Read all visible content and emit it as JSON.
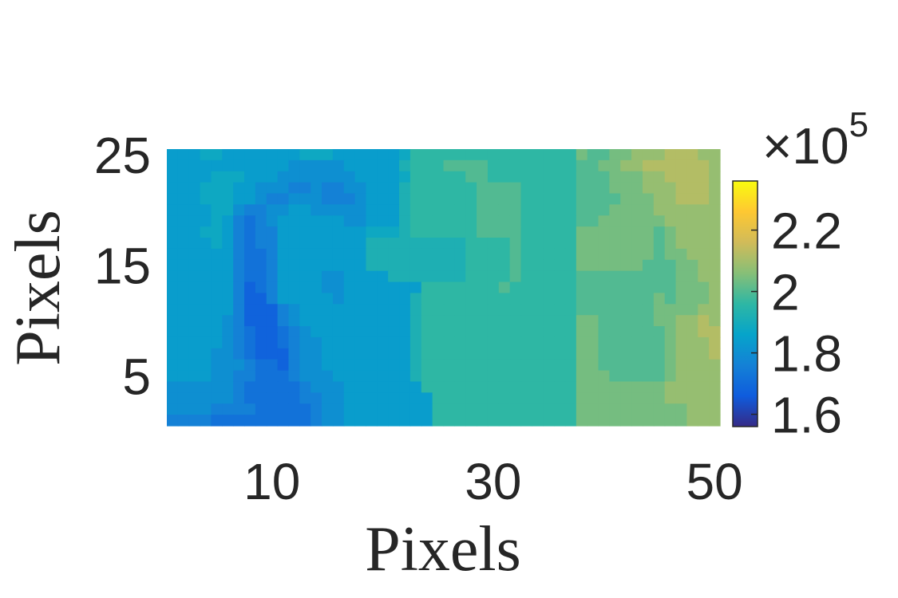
{
  "chart_data": {
    "type": "heatmap",
    "title": "",
    "xlabel": "Pixels",
    "ylabel": "Pixels",
    "xlim": [
      1,
      50
    ],
    "ylim": [
      1,
      25
    ],
    "x_ticks": [
      {
        "value": 10,
        "label": "10"
      },
      {
        "value": 30,
        "label": "30"
      },
      {
        "value": 50,
        "label": "50"
      }
    ],
    "y_ticks": [
      {
        "value": 5,
        "label": "5"
      },
      {
        "value": 15,
        "label": "15"
      },
      {
        "value": 25,
        "label": "25"
      }
    ],
    "colorbar": {
      "range": [
        1.56,
        2.36
      ],
      "ticks": [
        {
          "value": 1.6,
          "label": "1.6"
        },
        {
          "value": 1.8,
          "label": "1.8"
        },
        {
          "value": 2.0,
          "label": "2"
        },
        {
          "value": 2.2,
          "label": "2.2"
        }
      ],
      "exponent_base": "×10",
      "exponent_power": "5",
      "colormap": "parula",
      "colormap_stops": [
        "#352a87",
        "#0f5cdd",
        "#1481d6",
        "#06a4ca",
        "#2eb7a4",
        "#87bf77",
        "#d1bb59",
        "#fec832",
        "#f9fb0e"
      ]
    },
    "z_rows_top_to_bottom": [
      "HHHIIHHHHHHHIIIHHHHHHIKKKKKKKKKKKKKKKMLLMMNNNOOONN",
      "HHHHHHHHHHHGGGGGHHHHHJKKKLLLLKKKKKKKKLLMMNNOOOOOON",
      "HHHHIIIHHHGGGGGGGHHHHIKKKKKLLKKKKKKKKLLLMMMNNOOOON",
      "HHHIIIHHGGGFFGFFGGHHHJKKKKKKLLLLKKKKKLLLMMMNNNOOON",
      "HHHIIIHHGFFGGGFFFGHHHJKKKKKKLLLLKKKKKLLLLMMMNNOOON",
      "HHHHIIGFFGGHHGGGGGHHHJKKKKKKLLLLKKKKKLLLMMMMNNNNNN",
      "HHHHIHFEFGHHHHHHGGHHHJKKKKKKLLLLKKKKKLLMMMMMMNNNNN",
      "HHHIIHFEFFHHHHHHHHIIIJKKKKKKLLLLKKKKKMMMMMMMLMNNNN",
      "HHHHIHFEFFHHHHHHHHJJJJJJJJJKKKKLKKKKKMMMMMMMLMNNNN",
      "HHHHHHFEEFHHHHHHHHJJJJJJJJJKKKKLKKKKKMMMMMMMLMMNNN",
      "HHHHHHFEEFHHHHHHHHJJJJJJJJJKKKKLKKKKKMMMMMMLLLMMNN",
      "HHHHHHFEEFHHHHGGHHHHJJJJJJJKKKKLKKKKKLLLLLLLLLMMNN",
      "HHHHHHFDEFHHHHGGHHHHHHHKKKKKKKLKKKKKKLLLLLLLLLMMMN",
      "HHHHHHFDDFHHHHHGHHHHHHJKKKKKKKKKKKKKKLLLLLLLMLMMMN",
      "HHHHHHFDDDFGHHHHHHHHHHJKKKKKKKKKKKKKKLLLLLLLMMMMNN",
      "HHHHHGFDDDFGHHHHHHHHHHJKKKKKKKKKKKKKKMMLLLLLMMNNON",
      "HHHHHGFEDDEFGHHHHHHHHHJKKKKKKKKKKKKKKMMLLLLLLMNNOO",
      "HHHHHGFEDDEFGGHHHHHHHHJKKKKKKKKKKKKKKMMLLLLLLMNNNO",
      "HHHHGGFEDDDFGGHHHHHHHHJKKKKKKKKKKKKKKMMLLLLLLMNNNO",
      "HHHHGGGFEEDFGGHHHHHHHHJKKKKKKKKKKKKKKMMLLLLLLMNNNN",
      "HHHHGGFFEEEFGGGHHHHHHHJKKKKKKKKKKKKKKMMMLLLLLMNNNN",
      "GGGGGGFEEEEEFGGGHHHHHHHKKKKKKKKKKKKKKMMMMMMMMNNNNN",
      "GGGGGGFEEEEEFFGGHHHHHHHHKKKKKKKKKKKKKMMMMMMMMNNNNN",
      "GGGGFFFFEEEEEFGGHHHHHHHHKKKKKKKKKKKKKMMMMMMMMMMNNN",
      "FFFFEEEEEEEEEFGGHHHHHHHHKKKKKKKKKKKKKMMMMMMMMMMNNN"
    ],
    "z_encoding_levels": [
      1.56,
      1.6,
      1.64,
      1.68,
      1.72,
      1.76,
      1.8,
      1.84,
      1.88,
      1.92,
      1.96,
      2.0,
      2.04,
      2.08,
      2.12,
      2.16,
      2.2,
      2.24,
      2.28,
      2.32,
      2.36
    ],
    "z_encoding_alphabet": "ABCDEFGHIJKLMNOPQRSTU"
  }
}
